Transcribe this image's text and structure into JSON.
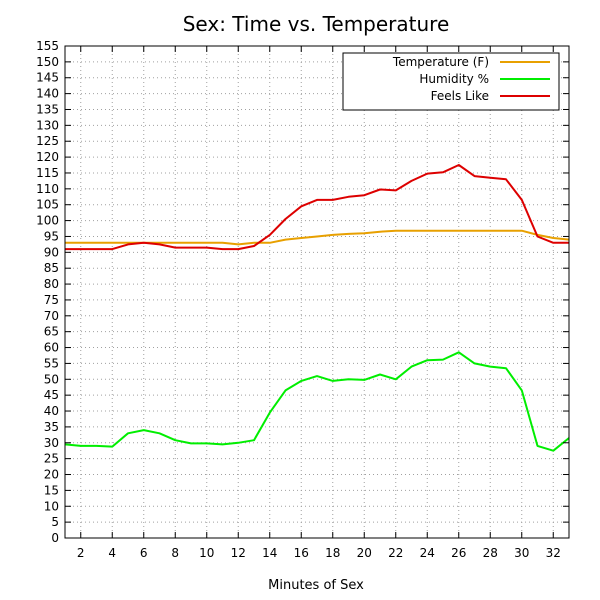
{
  "chart_data": {
    "type": "line",
    "title": "Sex: Time vs. Temperature",
    "xlabel": "Minutes of Sex",
    "ylabel": "",
    "xlim": [
      1,
      33
    ],
    "ylim": [
      0,
      155
    ],
    "xticks": [
      2,
      4,
      6,
      8,
      10,
      12,
      14,
      16,
      18,
      20,
      22,
      24,
      26,
      28,
      30,
      32
    ],
    "yticks": [
      0,
      5,
      10,
      15,
      20,
      25,
      30,
      35,
      40,
      45,
      50,
      55,
      60,
      65,
      70,
      75,
      80,
      85,
      90,
      95,
      100,
      105,
      110,
      115,
      120,
      125,
      130,
      135,
      140,
      145,
      150,
      155
    ],
    "grid": true,
    "legend_position": "top-right",
    "x": [
      1,
      2,
      3,
      4,
      5,
      6,
      7,
      8,
      9,
      10,
      11,
      12,
      13,
      14,
      15,
      16,
      17,
      18,
      19,
      20,
      21,
      22,
      23,
      24,
      25,
      26,
      27,
      28,
      29,
      30,
      31,
      32,
      33
    ],
    "series": [
      {
        "name": "Temperature (F)",
        "color": "#e8a000",
        "values": [
          93,
          93,
          93,
          93,
          93,
          93,
          93,
          93,
          93,
          93,
          93,
          92.5,
          93,
          93,
          94,
          94.5,
          95,
          95.5,
          95.8,
          96,
          96.5,
          96.8,
          96.8,
          96.8,
          96.8,
          96.8,
          96.8,
          96.8,
          96.8,
          96.8,
          95.5,
          94.5,
          94
        ]
      },
      {
        "name": "Humidity %",
        "color": "#00ee00",
        "values": [
          29.5,
          29,
          29,
          28.8,
          33,
          34,
          33,
          30.8,
          29.8,
          29.8,
          29.5,
          30,
          30.8,
          39.5,
          46.5,
          49.5,
          51,
          49.5,
          50,
          49.8,
          51.5,
          50,
          54,
          56,
          56.2,
          58.5,
          55,
          54,
          53.5,
          46.5,
          29,
          27.5,
          31.5
        ]
      },
      {
        "name": "Feels Like",
        "color": "#dd0000",
        "values": [
          91,
          91,
          91,
          91,
          92.5,
          93,
          92.5,
          91.5,
          91.5,
          91.5,
          91,
          91,
          92,
          95.5,
          100.5,
          104.5,
          106.5,
          106.5,
          107.5,
          108,
          109.8,
          109.5,
          112.5,
          114.8,
          115.2,
          117.5,
          114,
          113.5,
          113,
          106.5,
          95,
          93,
          93
        ]
      }
    ]
  }
}
